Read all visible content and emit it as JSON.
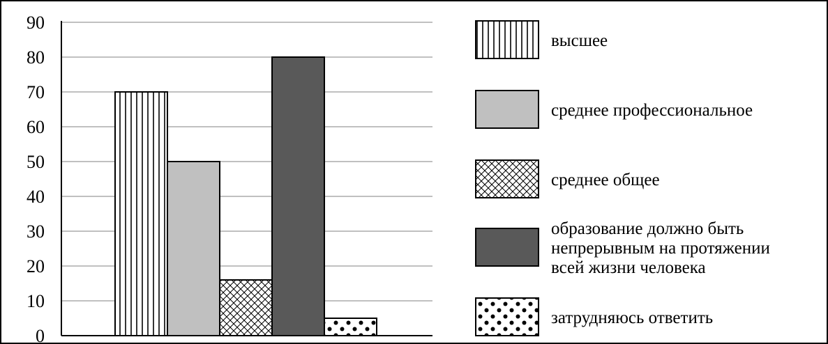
{
  "chart_data": {
    "type": "bar",
    "categories": [
      "высшее",
      "среднее профессиональное",
      "среднее общее",
      "образование должно быть непрерывным на протяжении всей жизни человека",
      "затрудняюсь ответить"
    ],
    "values": [
      70,
      50,
      16,
      80,
      5
    ],
    "ylim": [
      0,
      90
    ],
    "yticks": [
      "0",
      "10",
      "20",
      "30",
      "40",
      "50",
      "60",
      "70",
      "80",
      "90"
    ],
    "grid": true,
    "legend_position": "right",
    "legend": [
      {
        "lines": [
          "высшее"
        ],
        "pattern": "vertical-lines"
      },
      {
        "lines": [
          "среднее профессиональное"
        ],
        "pattern": "solid-light-gray"
      },
      {
        "lines": [
          "среднее общее"
        ],
        "pattern": "crosshatch"
      },
      {
        "lines": [
          "образование должно быть",
          "непрерывным на протяжении",
          "всей жизни человека"
        ],
        "pattern": "solid-dark-gray"
      },
      {
        "lines": [
          "затрудняюсь ответить"
        ],
        "pattern": "dots"
      }
    ],
    "colors": {
      "light_gray": "#c0c0c0",
      "dark_gray": "#595959",
      "grid": "#808080"
    }
  }
}
